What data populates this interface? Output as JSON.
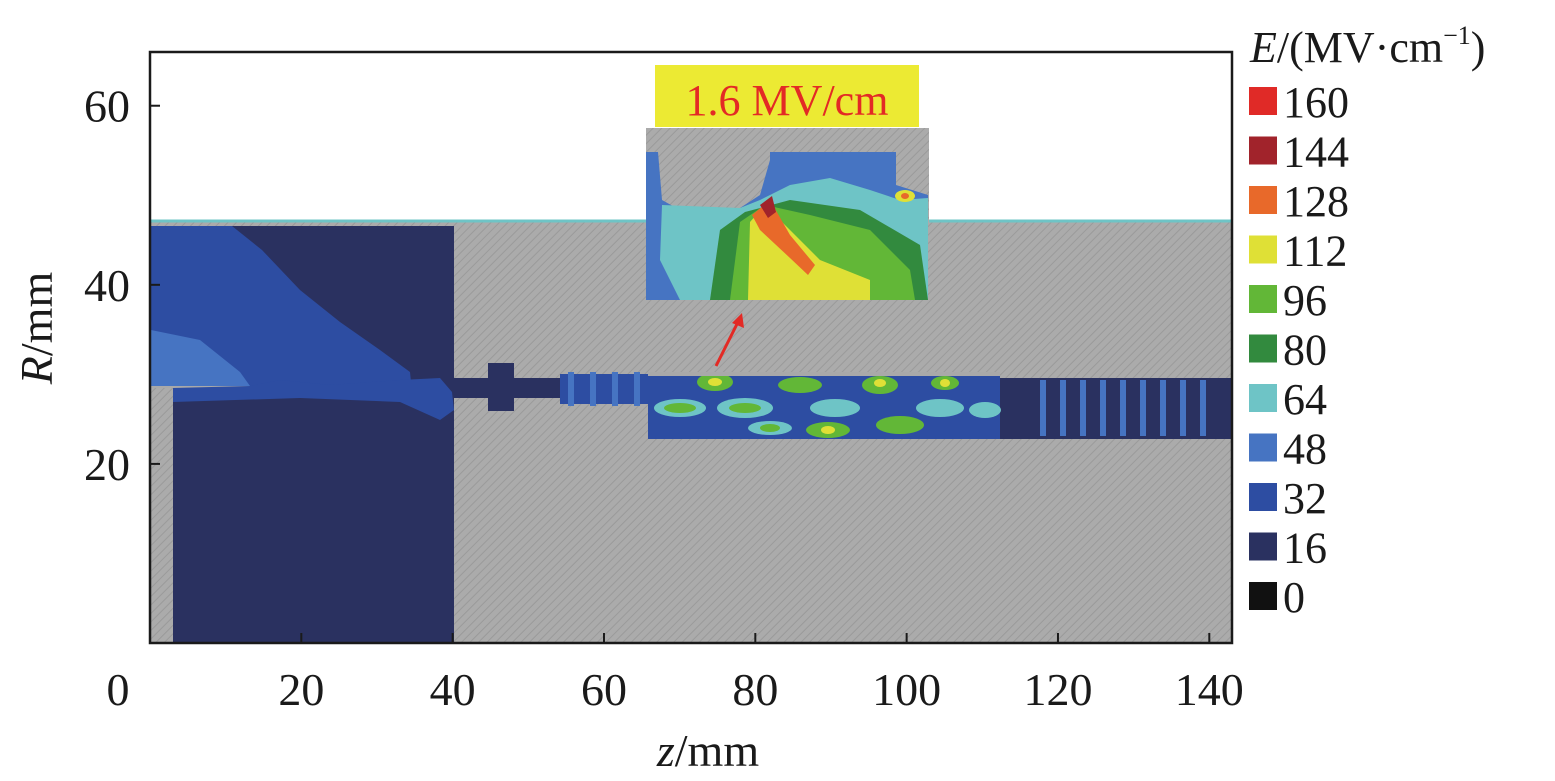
{
  "chart_data": {
    "type": "heatmap",
    "x_axis": {
      "label_italic": "z",
      "label_rest": "/mm",
      "range": [
        0,
        143
      ],
      "ticks": [
        0,
        20,
        40,
        60,
        80,
        100,
        120,
        140
      ],
      "tick_labels": [
        "0",
        "20",
        "40",
        "60",
        "80",
        "100",
        "120",
        "140"
      ]
    },
    "y_axis": {
      "label_italic": "R",
      "label_rest": "/mm",
      "range": [
        0,
        66
      ],
      "ticks": [
        20,
        40,
        60
      ],
      "tick_labels": [
        "20",
        "40",
        "60"
      ]
    },
    "colorbar": {
      "title_italic": "E",
      "title_rest": "/(MV·cm",
      "title_sup": "−1",
      "title_close": ")",
      "levels": [
        {
          "label": "160",
          "color": "#e02a27"
        },
        {
          "label": "144",
          "color": "#a1232b"
        },
        {
          "label": "128",
          "color": "#e8692a"
        },
        {
          "label": "112",
          "color": "#dfe036"
        },
        {
          "label": "96",
          "color": "#62b737"
        },
        {
          "label": "80",
          "color": "#328a3e"
        },
        {
          "label": "64",
          "color": "#6ec4c6"
        },
        {
          "label": "48",
          "color": "#4674c2"
        },
        {
          "label": "32",
          "color": "#2d4da2"
        },
        {
          "label": "16",
          "color": "#2a3160"
        },
        {
          "label": "0",
          "color": "#111111"
        }
      ]
    },
    "annotation": {
      "text": "1.6 MV/cm",
      "box_color": "#ecea33",
      "text_color": "#e32a25"
    },
    "metal_color": "#a9a9a9"
  }
}
